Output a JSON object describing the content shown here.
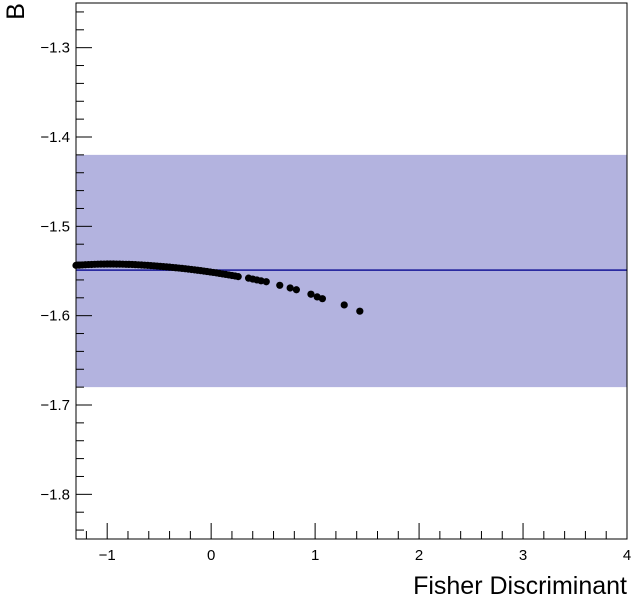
{
  "chart_data": {
    "type": "scatter",
    "title": "",
    "xlabel": "Fisher Discriminant",
    "ylabel": "B",
    "xlim": [
      -1.3,
      4.0
    ],
    "ylim": [
      -1.85,
      -1.25
    ],
    "xticks": [
      -1,
      0,
      1,
      2,
      3,
      4
    ],
    "yticks": [
      -1.3,
      -1.4,
      -1.5,
      -1.6,
      -1.7,
      -1.8
    ],
    "xtick_labels": [
      "−1",
      "0",
      "1",
      "2",
      "3",
      "4"
    ],
    "ytick_labels": [
      "−1.3",
      "−1.4",
      "−1.5",
      "−1.6",
      "−1.7",
      "−1.8"
    ],
    "grid": false,
    "band": {
      "y_low": -1.68,
      "y_high": -1.42,
      "color": "#b3b3df"
    },
    "reference_line": {
      "y": -1.549,
      "color": "#2a2aa0"
    },
    "points": {
      "color": "#000000",
      "x": [
        -1.3,
        -1.27,
        -1.24,
        -1.21,
        -1.18,
        -1.15,
        -1.12,
        -1.09,
        -1.06,
        -1.03,
        -1.0,
        -0.97,
        -0.94,
        -0.91,
        -0.88,
        -0.85,
        -0.82,
        -0.79,
        -0.76,
        -0.73,
        -0.7,
        -0.67,
        -0.64,
        -0.61,
        -0.58,
        -0.55,
        -0.52,
        -0.49,
        -0.46,
        -0.43,
        -0.4,
        -0.37,
        -0.34,
        -0.31,
        -0.28,
        -0.25,
        -0.22,
        -0.19,
        -0.16,
        -0.13,
        -0.1,
        -0.07,
        -0.04,
        -0.01,
        0.02,
        0.05,
        0.08,
        0.11,
        0.14,
        0.17,
        0.2,
        0.23,
        0.26,
        0.36,
        0.4,
        0.44,
        0.48,
        0.53,
        0.66,
        0.76,
        0.82,
        0.96,
        1.02,
        1.07,
        1.28,
        1.43
      ],
      "y": [
        -1.5437,
        -1.5435,
        -1.5432,
        -1.543,
        -1.5428,
        -1.5427,
        -1.5425,
        -1.5424,
        -1.5423,
        -1.5423,
        -1.5422,
        -1.5422,
        -1.5422,
        -1.5423,
        -1.5423,
        -1.5424,
        -1.5425,
        -1.5426,
        -1.5427,
        -1.5429,
        -1.5431,
        -1.5433,
        -1.5435,
        -1.5437,
        -1.544,
        -1.5442,
        -1.5445,
        -1.5448,
        -1.5451,
        -1.5454,
        -1.5457,
        -1.546,
        -1.5464,
        -1.5467,
        -1.5471,
        -1.5475,
        -1.5479,
        -1.5483,
        -1.5487,
        -1.5492,
        -1.5496,
        -1.5501,
        -1.5506,
        -1.5511,
        -1.5516,
        -1.5521,
        -1.5527,
        -1.5533,
        -1.5538,
        -1.5544,
        -1.555,
        -1.5556,
        -1.5563,
        -1.558,
        -1.559,
        -1.56,
        -1.561,
        -1.562,
        -1.566,
        -1.569,
        -1.571,
        -1.576,
        -1.579,
        -1.581,
        -1.588,
        -1.595
      ]
    }
  }
}
